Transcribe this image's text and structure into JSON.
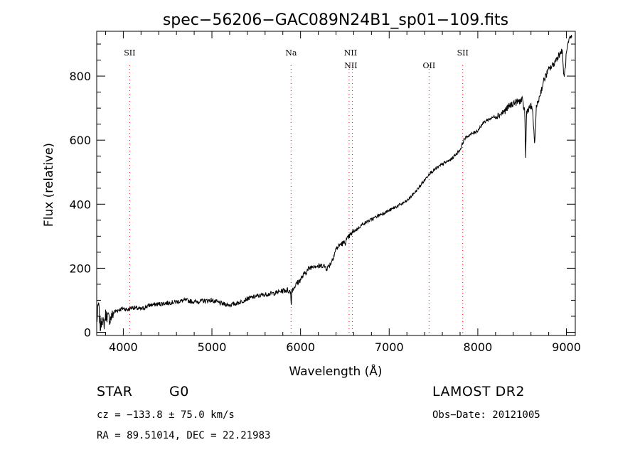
{
  "chart_data": {
    "type": "line",
    "title": "spec−56206−GAC089N24B1_sp01−109.fits",
    "xlabel": "Wavelength (Å)",
    "ylabel": "Flux (relative)",
    "xlim": [
      3700,
      9100
    ],
    "ylim": [
      -10,
      940
    ],
    "x_ticks": [
      4000,
      5000,
      6000,
      7000,
      8000,
      9000
    ],
    "y_ticks": [
      0,
      200,
      400,
      600,
      800
    ],
    "grid": false,
    "line_color": "#000000",
    "marker_color": "#ff0000",
    "series": [
      {
        "points": [
          [
            3700,
            30
          ],
          [
            3720,
            90
          ],
          [
            3740,
            15
          ],
          [
            3760,
            45
          ],
          [
            3780,
            20
          ],
          [
            3800,
            55
          ],
          [
            3850,
            40
          ],
          [
            3900,
            65
          ],
          [
            3950,
            70
          ],
          [
            4000,
            75
          ],
          [
            4050,
            70
          ],
          [
            4100,
            78
          ],
          [
            4200,
            72
          ],
          [
            4300,
            85
          ],
          [
            4400,
            88
          ],
          [
            4500,
            92
          ],
          [
            4600,
            95
          ],
          [
            4700,
            100
          ],
          [
            4800,
            95
          ],
          [
            4900,
            98
          ],
          [
            5000,
            100
          ],
          [
            5100,
            90
          ],
          [
            5200,
            85
          ],
          [
            5300,
            92
          ],
          [
            5400,
            105
          ],
          [
            5500,
            112
          ],
          [
            5600,
            118
          ],
          [
            5700,
            122
          ],
          [
            5800,
            130
          ],
          [
            5850,
            132
          ],
          [
            5890,
            125
          ],
          [
            5895,
            75
          ],
          [
            5900,
            130
          ],
          [
            5950,
            150
          ],
          [
            6000,
            165
          ],
          [
            6050,
            185
          ],
          [
            6100,
            200
          ],
          [
            6150,
            210
          ],
          [
            6200,
            205
          ],
          [
            6250,
            210
          ],
          [
            6300,
            200
          ],
          [
            6350,
            220
          ],
          [
            6400,
            260
          ],
          [
            6450,
            275
          ],
          [
            6500,
            280
          ],
          [
            6550,
            300
          ],
          [
            6600,
            315
          ],
          [
            6650,
            325
          ],
          [
            6700,
            338
          ],
          [
            6800,
            352
          ],
          [
            6900,
            368
          ],
          [
            7000,
            380
          ],
          [
            7100,
            395
          ],
          [
            7200,
            410
          ],
          [
            7300,
            440
          ],
          [
            7400,
            475
          ],
          [
            7450,
            495
          ],
          [
            7500,
            505
          ],
          [
            7550,
            515
          ],
          [
            7600,
            525
          ],
          [
            7700,
            540
          ],
          [
            7800,
            570
          ],
          [
            7850,
            605
          ],
          [
            7900,
            615
          ],
          [
            8000,
            630
          ],
          [
            8050,
            650
          ],
          [
            8100,
            662
          ],
          [
            8150,
            668
          ],
          [
            8200,
            675
          ],
          [
            8250,
            680
          ],
          [
            8300,
            690
          ],
          [
            8350,
            705
          ],
          [
            8400,
            715
          ],
          [
            8450,
            720
          ],
          [
            8500,
            725
          ],
          [
            8530,
            690
          ],
          [
            8540,
            540
          ],
          [
            8550,
            690
          ],
          [
            8580,
            700
          ],
          [
            8600,
            705
          ],
          [
            8620,
            690
          ],
          [
            8640,
            580
          ],
          [
            8660,
            700
          ],
          [
            8700,
            740
          ],
          [
            8750,
            790
          ],
          [
            8800,
            820
          ],
          [
            8850,
            835
          ],
          [
            8900,
            860
          ],
          [
            8950,
            880
          ],
          [
            8975,
            790
          ],
          [
            9000,
            870
          ],
          [
            9030,
            910
          ],
          [
            9060,
            925
          ]
        ]
      }
    ],
    "lines": [
      {
        "label": "SII",
        "x": 4072
      },
      {
        "label": "Na",
        "x": 5893
      },
      {
        "label": "NII",
        "x": 6548
      },
      {
        "label": "NII",
        "x": 6584
      },
      {
        "label": "OII",
        "x": 7450
      },
      {
        "label": "SII",
        "x": 7830
      }
    ]
  },
  "info": {
    "class_label": "STAR",
    "subclass_label": "G0",
    "survey_label": "LAMOST DR2",
    "cz_text": "cz = −133.8 ± 75.0 km/s",
    "obsdate_text": "Obs−Date: 20121005",
    "radec_text": "RA =  89.51014, DEC =  22.21983"
  }
}
